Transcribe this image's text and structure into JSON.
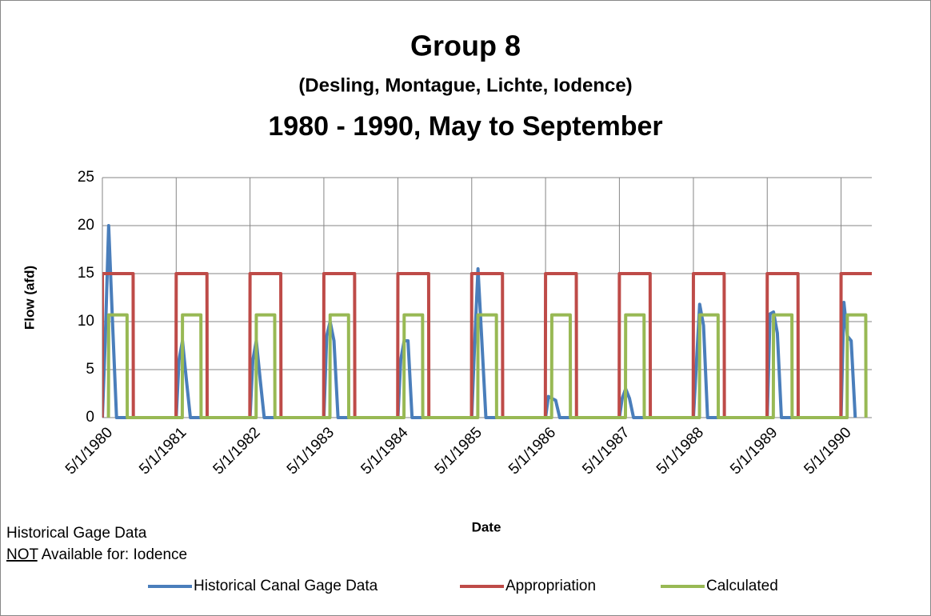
{
  "chart_data": {
    "type": "line",
    "title": "Group 8",
    "subtitle": "(Desling, Montague, Lichte, Iodence)",
    "subtitle_2": "1980 - 1990, May to September",
    "xlabel": "Date",
    "ylabel": "Flow (afd)",
    "notes": [
      "Historical Gage Data"
    ],
    "note_underlined": "NOT",
    "note_rest": "Available for: Iodence",
    "xlim": [
      "5/1/1980",
      "9/30/1990"
    ],
    "xticks": [
      "5/1/1980",
      "5/1/1981",
      "5/1/1982",
      "5/1/1983",
      "5/1/1984",
      "5/1/1985",
      "5/1/1986",
      "5/1/1987",
      "5/1/1988",
      "5/1/1989",
      "5/1/1990"
    ],
    "ylim": [
      0,
      25
    ],
    "yticks": [
      0,
      5,
      10,
      15,
      20,
      25
    ],
    "grid": true,
    "legend": "bottom",
    "series": [
      {
        "name": "Historical Canal Gage Data",
        "color": "#4a7ebb",
        "x": [
          "5/1/1980",
          "5/15/1980",
          "6/1/1980",
          "6/20/1980",
          "7/10/1980",
          "5/1/1981",
          "5/15/1981",
          "6/1/1981",
          "6/20/1981",
          "7/10/1981",
          "5/1/1982",
          "5/15/1982",
          "6/1/1982",
          "6/20/1982",
          "7/10/1982",
          "5/1/1983",
          "5/15/1983",
          "6/1/1983",
          "6/20/1983",
          "7/10/1983",
          "5/1/1984",
          "5/15/1984",
          "6/1/1984",
          "6/20/1984",
          "7/10/1984",
          "5/1/1985",
          "5/15/1985",
          "6/1/1985",
          "6/20/1985",
          "7/10/1985",
          "5/1/1986",
          "5/15/1986",
          "6/1/1986",
          "6/20/1986",
          "7/10/1986",
          "5/1/1987",
          "5/15/1987",
          "6/1/1987",
          "6/20/1987",
          "7/10/1987",
          "5/1/1988",
          "5/15/1988",
          "6/1/1988",
          "6/20/1988",
          "7/10/1988",
          "5/1/1989",
          "5/15/1989",
          "6/1/1989",
          "6/20/1989",
          "7/10/1989",
          "5/1/1990",
          "5/15/1990",
          "6/1/1990",
          "6/20/1990",
          "7/10/1990"
        ],
        "values": [
          0,
          8,
          20,
          10,
          0,
          0,
          6,
          8,
          4,
          0,
          0,
          6,
          8,
          4,
          0,
          0,
          8.5,
          10,
          8,
          0,
          0,
          6,
          8,
          8,
          0,
          0,
          7.5,
          15.5,
          8,
          0,
          0,
          2.2,
          2,
          1.8,
          0,
          0,
          2,
          3,
          2,
          0,
          0,
          5.3,
          11.8,
          9.6,
          0,
          0,
          10.8,
          11,
          8.8,
          0,
          0,
          12,
          8.5,
          8,
          0
        ]
      },
      {
        "name": "Appropriation",
        "color": "#be4b48",
        "x": [
          "4/30/1980",
          "5/1/1980",
          "9/30/1980",
          "10/1/1980",
          "4/30/1981",
          "5/1/1981",
          "9/30/1981",
          "10/1/1981",
          "4/30/1982",
          "5/1/1982",
          "9/30/1982",
          "10/1/1982",
          "4/30/1983",
          "5/1/1983",
          "9/30/1983",
          "10/1/1983",
          "4/30/1984",
          "5/1/1984",
          "9/30/1984",
          "10/1/1984",
          "4/30/1985",
          "5/1/1985",
          "9/30/1985",
          "10/1/1985",
          "4/30/1986",
          "5/1/1986",
          "9/30/1986",
          "10/1/1986",
          "4/30/1987",
          "5/1/1987",
          "9/30/1987",
          "10/1/1987",
          "4/30/1988",
          "5/1/1988",
          "9/30/1988",
          "10/1/1988",
          "4/30/1989",
          "5/1/1989",
          "9/30/1989",
          "10/1/1989",
          "4/30/1990",
          "5/1/1990",
          "9/30/1990"
        ],
        "values": [
          0,
          15,
          15,
          0,
          0,
          15,
          15,
          0,
          0,
          15,
          15,
          0,
          0,
          15,
          15,
          0,
          0,
          15,
          15,
          0,
          0,
          15,
          15,
          0,
          0,
          15,
          15,
          0,
          0,
          15,
          15,
          0,
          0,
          15,
          15,
          0,
          0,
          15,
          15,
          0,
          0,
          15,
          15
        ]
      },
      {
        "name": "Calculated",
        "color": "#98b954",
        "x": [
          "5/31/1980",
          "6/1/1980",
          "8/31/1980",
          "9/1/1980",
          "5/31/1981",
          "6/1/1981",
          "8/31/1981",
          "9/1/1981",
          "5/31/1982",
          "6/1/1982",
          "8/31/1982",
          "9/1/1982",
          "5/31/1983",
          "6/1/1983",
          "8/31/1983",
          "9/1/1983",
          "5/31/1984",
          "6/1/1984",
          "8/31/1984",
          "9/1/1984",
          "5/31/1985",
          "6/1/1985",
          "8/31/1985",
          "9/1/1985",
          "5/31/1986",
          "6/1/1986",
          "8/31/1986",
          "9/1/1986",
          "5/31/1987",
          "6/1/1987",
          "8/31/1987",
          "9/1/1987",
          "5/31/1988",
          "6/1/1988",
          "8/31/1988",
          "9/1/1988",
          "5/31/1989",
          "6/1/1989",
          "8/31/1989",
          "9/1/1989",
          "5/31/1990",
          "6/1/1990",
          "8/31/1990",
          "9/1/1990"
        ],
        "values": [
          0,
          10.7,
          10.7,
          0,
          0,
          10.7,
          10.7,
          0,
          0,
          10.7,
          10.7,
          0,
          0,
          10.7,
          10.7,
          0,
          0,
          10.7,
          10.7,
          0,
          0,
          10.7,
          10.7,
          0,
          0,
          10.7,
          10.7,
          0,
          0,
          10.7,
          10.7,
          0,
          0,
          10.7,
          10.7,
          0,
          0,
          10.7,
          10.7,
          0,
          0,
          10.7,
          10.7,
          0
        ]
      }
    ]
  }
}
